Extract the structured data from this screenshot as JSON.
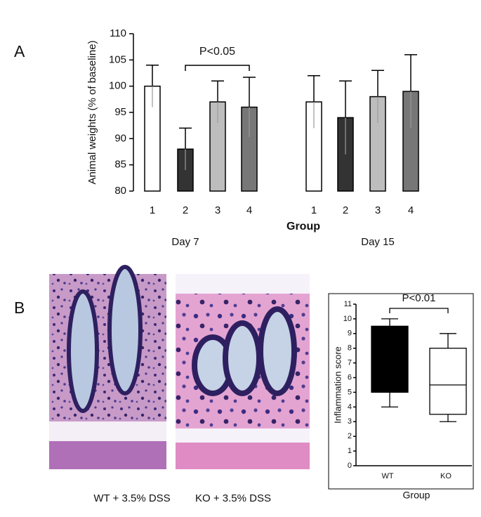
{
  "panel_labels": [
    "A",
    "B"
  ],
  "image_captions": [
    "WT + 3.5% DSS",
    "KO + 3.5% DSS"
  ],
  "chart_data": [
    {
      "type": "bar",
      "y_label": "Animal weights (% of baseline)",
      "x_label": "Group",
      "categories": [
        "1",
        "2",
        "3",
        "4",
        "1",
        "2",
        "3",
        "4"
      ],
      "group_labels": [
        "Day 7",
        "Day  15"
      ],
      "values": [
        100,
        88,
        97,
        96,
        97,
        94,
        98,
        99
      ],
      "errors": [
        4,
        4,
        4,
        5.7,
        5,
        7,
        5,
        7
      ],
      "colors": [
        "#ffffff",
        "#333333",
        "#bdbdbd",
        "#777777",
        "#ffffff",
        "#333333",
        "#bdbdbd",
        "#777777"
      ],
      "annotation": "P<0.05",
      "ylim": [
        80,
        110
      ],
      "yticks": [
        80,
        85,
        90,
        95,
        100,
        105,
        110
      ]
    },
    {
      "type": "box",
      "y_label": "Inflammation score",
      "x_label": "Group",
      "categories": [
        "WT",
        "KO"
      ],
      "boxes": [
        {
          "min": 4,
          "q1": 5,
          "q3": 9.5,
          "max": 10,
          "color": "#000000"
        },
        {
          "min": 3,
          "q1": 3.5,
          "median": 5.5,
          "q3": 8,
          "max": 9,
          "color": "#ffffff"
        }
      ],
      "annotation": "P<0.01",
      "ylim": [
        0,
        11
      ],
      "yticks": [
        0,
        1,
        2,
        3,
        4,
        5,
        6,
        7,
        8,
        9,
        10,
        11
      ]
    }
  ]
}
